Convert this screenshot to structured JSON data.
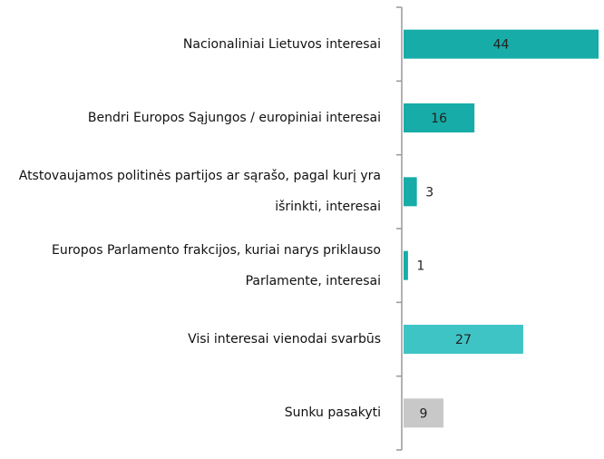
{
  "chart_data": {
    "type": "bar",
    "orientation": "horizontal",
    "categories": [
      "Nacionaliniai Lietuvos interesai",
      "Bendri Europos Sąjungos / europiniai interesai",
      "Atstovaujamos politinės partijos ar sąrašo, pagal kurį yra išrinkti, interesai",
      "Europos Parlamento frakcijos, kuriai narys priklauso Parlamente, interesai",
      "Visi interesai vienodai svarbūs",
      "Sunku pasakyti"
    ],
    "values": [
      44,
      16,
      3,
      1,
      27,
      9
    ],
    "colors": [
      "#17aca7",
      "#17aca7",
      "#17aca7",
      "#17aca7",
      "#3fc4c6",
      "#c8c8c8"
    ]
  }
}
